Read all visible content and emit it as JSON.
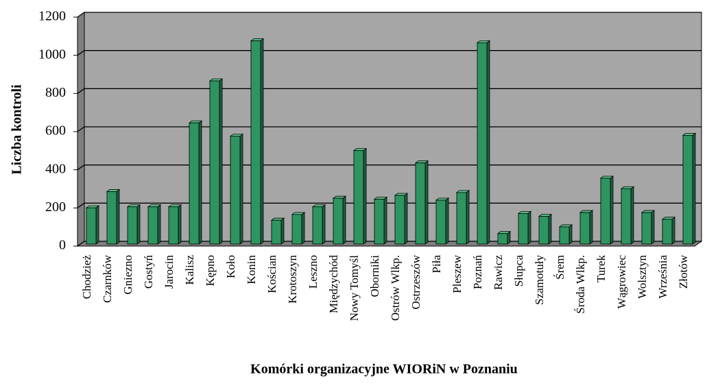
{
  "chart_data": {
    "type": "bar",
    "ylabel": "Liczba kontroli",
    "xlabel": "Komórki organizacyjne WIORiN w Poznaniu",
    "categories": [
      "Chodzież",
      "Czarnków",
      "Gniezno",
      "Gostyń",
      "Jarocin",
      "Kalisz",
      "Kępno",
      "Koło",
      "Konin",
      "Kościan",
      "Krotoszyn",
      "Leszno",
      "Międzychód",
      "Nowy Tomyśl",
      "Oborniki",
      "Ostrów Wlkp.",
      "Ostrzeszów",
      "Piła",
      "Pleszew",
      "Poznań",
      "Rawicz",
      "Słupca",
      "Szamotuły",
      "Śrem",
      "Środa Wlkp.",
      "Turek",
      "Wągrowiec",
      "Wolsztyn",
      "Września",
      "Złotów"
    ],
    "values": [
      190,
      275,
      195,
      195,
      195,
      635,
      855,
      565,
      1065,
      125,
      155,
      195,
      240,
      490,
      235,
      255,
      425,
      230,
      270,
      1055,
      55,
      160,
      145,
      90,
      165,
      345,
      290,
      165,
      130,
      570
    ],
    "color": "#2e9460",
    "ylim": [
      0,
      1200
    ],
    "yticks": [
      0,
      200,
      400,
      600,
      800,
      1000,
      1200
    ],
    "grid": true
  }
}
